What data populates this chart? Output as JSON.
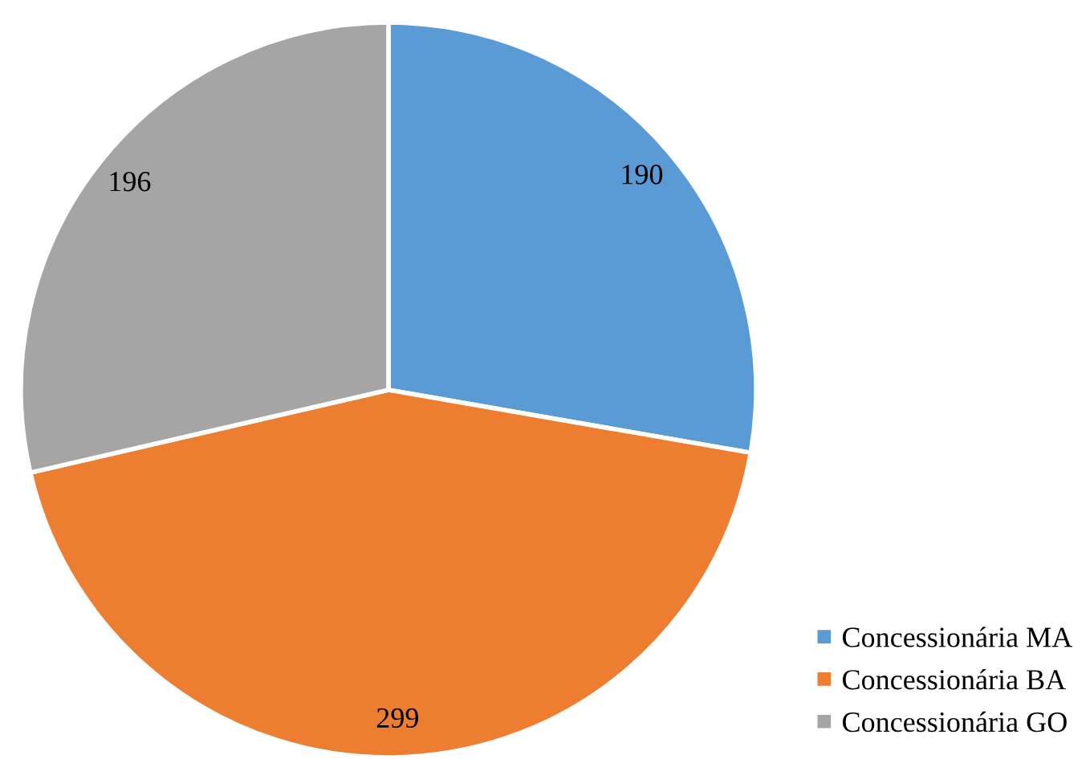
{
  "chart_data": {
    "type": "pie",
    "categories": [
      "Concessionária MA",
      "Concessionária BA",
      "Concessionária GO"
    ],
    "values": [
      190,
      299,
      196
    ],
    "colors": [
      "#5b9bd5",
      "#ed7d31",
      "#a5a5a5"
    ],
    "data_labels": true,
    "legend": "bottom right"
  }
}
